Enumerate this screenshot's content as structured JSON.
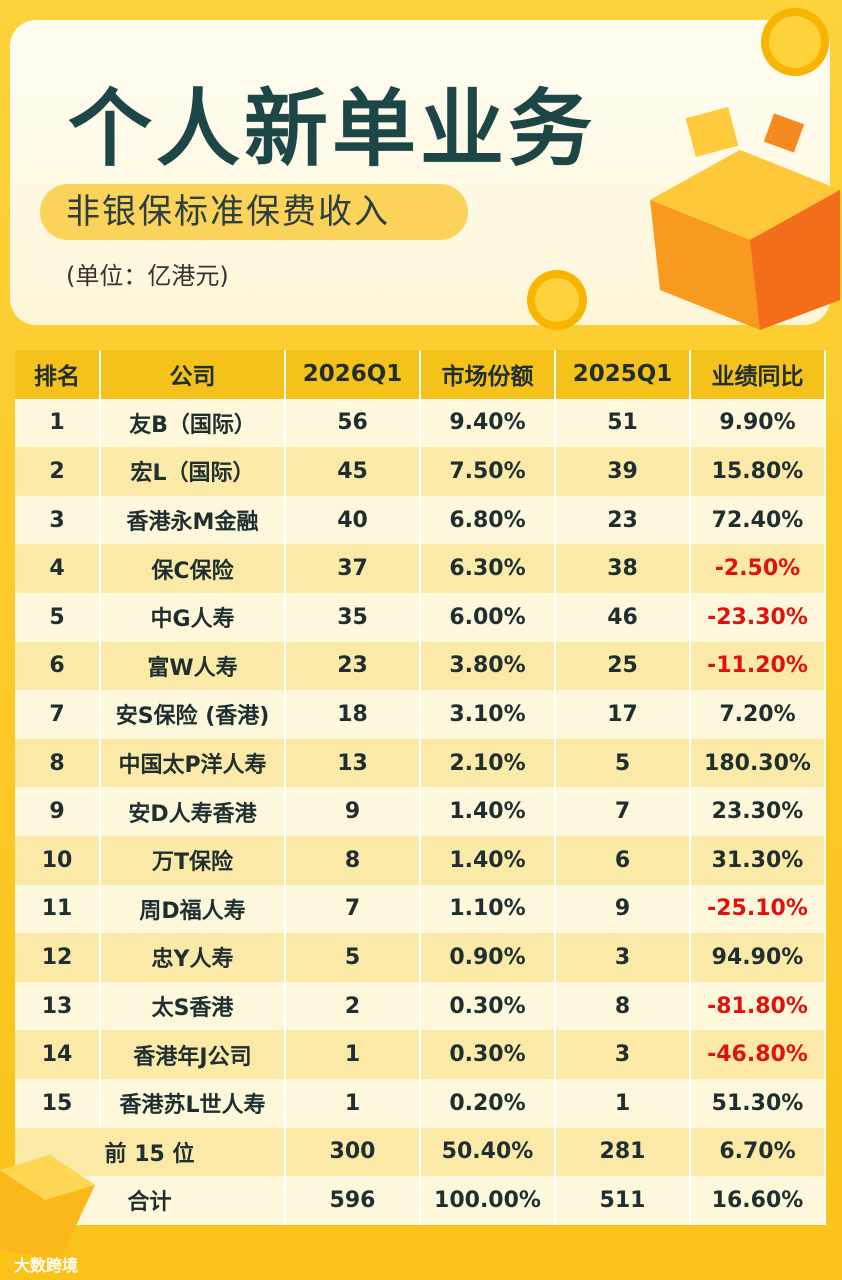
{
  "header": {
    "title": "个人新单业务",
    "subtitle": "非银保标准保费收入",
    "unit": "(单位：亿港元)"
  },
  "table": {
    "columns": [
      "排名",
      "公司",
      "2026Q1",
      "市场份额",
      "2025Q1",
      "业绩同比"
    ],
    "rows": [
      [
        "1",
        "友B（国际）",
        "56",
        "9.40%",
        "51",
        "9.90%"
      ],
      [
        "2",
        "宏L（国际）",
        "45",
        "7.50%",
        "39",
        "15.80%"
      ],
      [
        "3",
        "香港永M金融",
        "40",
        "6.80%",
        "23",
        "72.40%"
      ],
      [
        "4",
        "保C保险",
        "37",
        "6.30%",
        "38",
        "-2.50%"
      ],
      [
        "5",
        "中G人寿",
        "35",
        "6.00%",
        "46",
        "-23.30%"
      ],
      [
        "6",
        "富W人寿",
        "23",
        "3.80%",
        "25",
        "-11.20%"
      ],
      [
        "7",
        "安S保险 (香港)",
        "18",
        "3.10%",
        "17",
        "7.20%"
      ],
      [
        "8",
        "中国太P洋人寿",
        "13",
        "2.10%",
        "5",
        "180.30%"
      ],
      [
        "9",
        "安D人寿香港",
        "9",
        "1.40%",
        "7",
        "23.30%"
      ],
      [
        "10",
        "万T保险",
        "8",
        "1.40%",
        "6",
        "31.30%"
      ],
      [
        "11",
        "周D福人寿",
        "7",
        "1.10%",
        "9",
        "-25.10%"
      ],
      [
        "12",
        "忠Y人寿",
        "5",
        "0.90%",
        "3",
        "94.90%"
      ],
      [
        "13",
        "太S香港",
        "2",
        "0.30%",
        "8",
        "-81.80%"
      ],
      [
        "14",
        "香港年J公司",
        "1",
        "0.30%",
        "3",
        "-46.80%"
      ],
      [
        "15",
        "香港苏L世人寿",
        "1",
        "0.20%",
        "1",
        "51.30%"
      ]
    ],
    "summary": [
      [
        "前 15 位",
        "300",
        "50.40%",
        "281",
        "6.70%"
      ],
      [
        "合计",
        "596",
        "100.00%",
        "511",
        "16.60%"
      ]
    ]
  },
  "watermark": "大数跨境"
}
